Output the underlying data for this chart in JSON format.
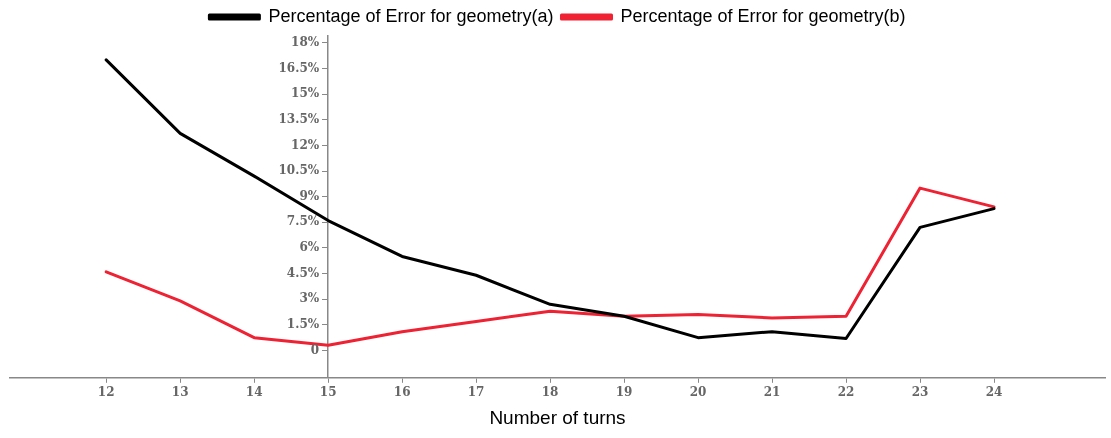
{
  "chart_data": {
    "type": "line",
    "xlabel": "Number of turns",
    "legend": "top",
    "x": [
      12,
      13,
      14,
      15,
      16,
      17,
      18,
      19,
      20,
      21,
      22,
      23,
      24
    ],
    "xlim": [
      10.7,
      25.5
    ],
    "xticks": [
      12,
      13,
      14,
      15,
      16,
      17,
      18,
      19,
      20,
      21,
      22,
      23,
      24
    ],
    "ylim": [
      -1.6,
      18.4
    ],
    "yticks": [
      {
        "value": 0,
        "label": "0"
      },
      {
        "value": 1.5,
        "label": "1.5%"
      },
      {
        "value": 3,
        "label": "3%"
      },
      {
        "value": 4.5,
        "label": "4.5%"
      },
      {
        "value": 6,
        "label": "6%"
      },
      {
        "value": 7.5,
        "label": "7.5%"
      },
      {
        "value": 9,
        "label": "9%"
      },
      {
        "value": 10.5,
        "label": "10.5%"
      },
      {
        "value": 12,
        "label": "12%"
      },
      {
        "value": 13.5,
        "label": "13.5%"
      },
      {
        "value": 15,
        "label": "15%"
      },
      {
        "value": 16.5,
        "label": "16.5%"
      },
      {
        "value": 18,
        "label": "18%"
      }
    ],
    "marker": "none",
    "line_style": "solid",
    "series": [
      {
        "name": "Percentage of Error for geometry(a)",
        "color": "#000000",
        "values": [
          17.0,
          12.7,
          10.2,
          7.6,
          5.5,
          4.4,
          2.7,
          2.0,
          0.75,
          1.1,
          0.7,
          7.2,
          8.3
        ]
      },
      {
        "name": "Percentage of Error for geometry(b)",
        "color": "#ee2233",
        "values": [
          4.6,
          2.9,
          0.75,
          0.3,
          1.1,
          1.7,
          2.3,
          2.0,
          2.1,
          1.9,
          2.0,
          9.5,
          8.4
        ]
      }
    ]
  }
}
